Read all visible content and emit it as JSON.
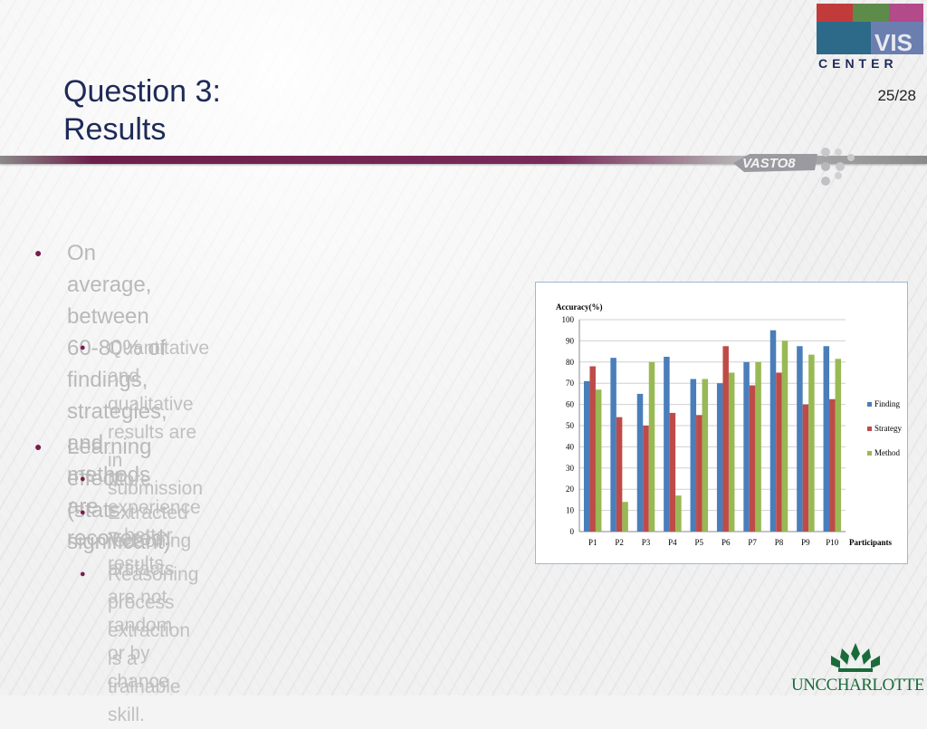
{
  "title": {
    "line1": "Question 3:",
    "line2": "Results"
  },
  "slide_number": "25/28",
  "logos": {
    "top_right": "VIS CENTER",
    "header_badge": "VAST08",
    "bottom_right": "UNCCHARLOTTE"
  },
  "bullets": [
    {
      "text": "On average, between 60-80% of findings, strategies, and methods are recovered.",
      "lines": [
        "On average, between 60-80% of",
        "findings, strategies, and methods are",
        "recovered."
      ],
      "sub": [
        {
          "lines": [
            "Quantitative and qualitative results are in",
            "submission"
          ]
        }
      ]
    },
    {
      "lines": [
        "Learning effect:  (stats. significant)"
      ],
      "sub": [
        {
          "lines": [
            "More experience = better results."
          ]
        },
        {
          "lines": [
            "Extracted reasoning artifacts are not",
            "random or by chance."
          ]
        },
        {
          "lines": [
            "Reasoning process extraction is a",
            "trainable skill."
          ]
        }
      ]
    }
  ],
  "chart_data": {
    "type": "bar",
    "title": "",
    "ylabel": "Accuracy(%)",
    "xlabel": "Participants",
    "ylim": [
      0,
      100
    ],
    "yticks": [
      0,
      10,
      20,
      30,
      40,
      50,
      60,
      70,
      80,
      90,
      100
    ],
    "categories": [
      "P1",
      "P2",
      "P3",
      "P4",
      "P5",
      "P6",
      "P7",
      "P8",
      "P9",
      "P10"
    ],
    "legend_position": "right",
    "series": [
      {
        "name": "Finding",
        "color": "#4a7ebb",
        "values": [
          71,
          82,
          65,
          82.5,
          72,
          70,
          80,
          95,
          87.5,
          87.5
        ]
      },
      {
        "name": "Strategy",
        "color": "#be4b48",
        "values": [
          78,
          54,
          50,
          56,
          55,
          87.5,
          69,
          75,
          60,
          62.5
        ]
      },
      {
        "name": "Method",
        "color": "#98b954",
        "values": [
          67,
          14,
          80,
          17,
          72,
          75,
          80,
          90,
          83.5,
          81.5
        ]
      }
    ]
  }
}
